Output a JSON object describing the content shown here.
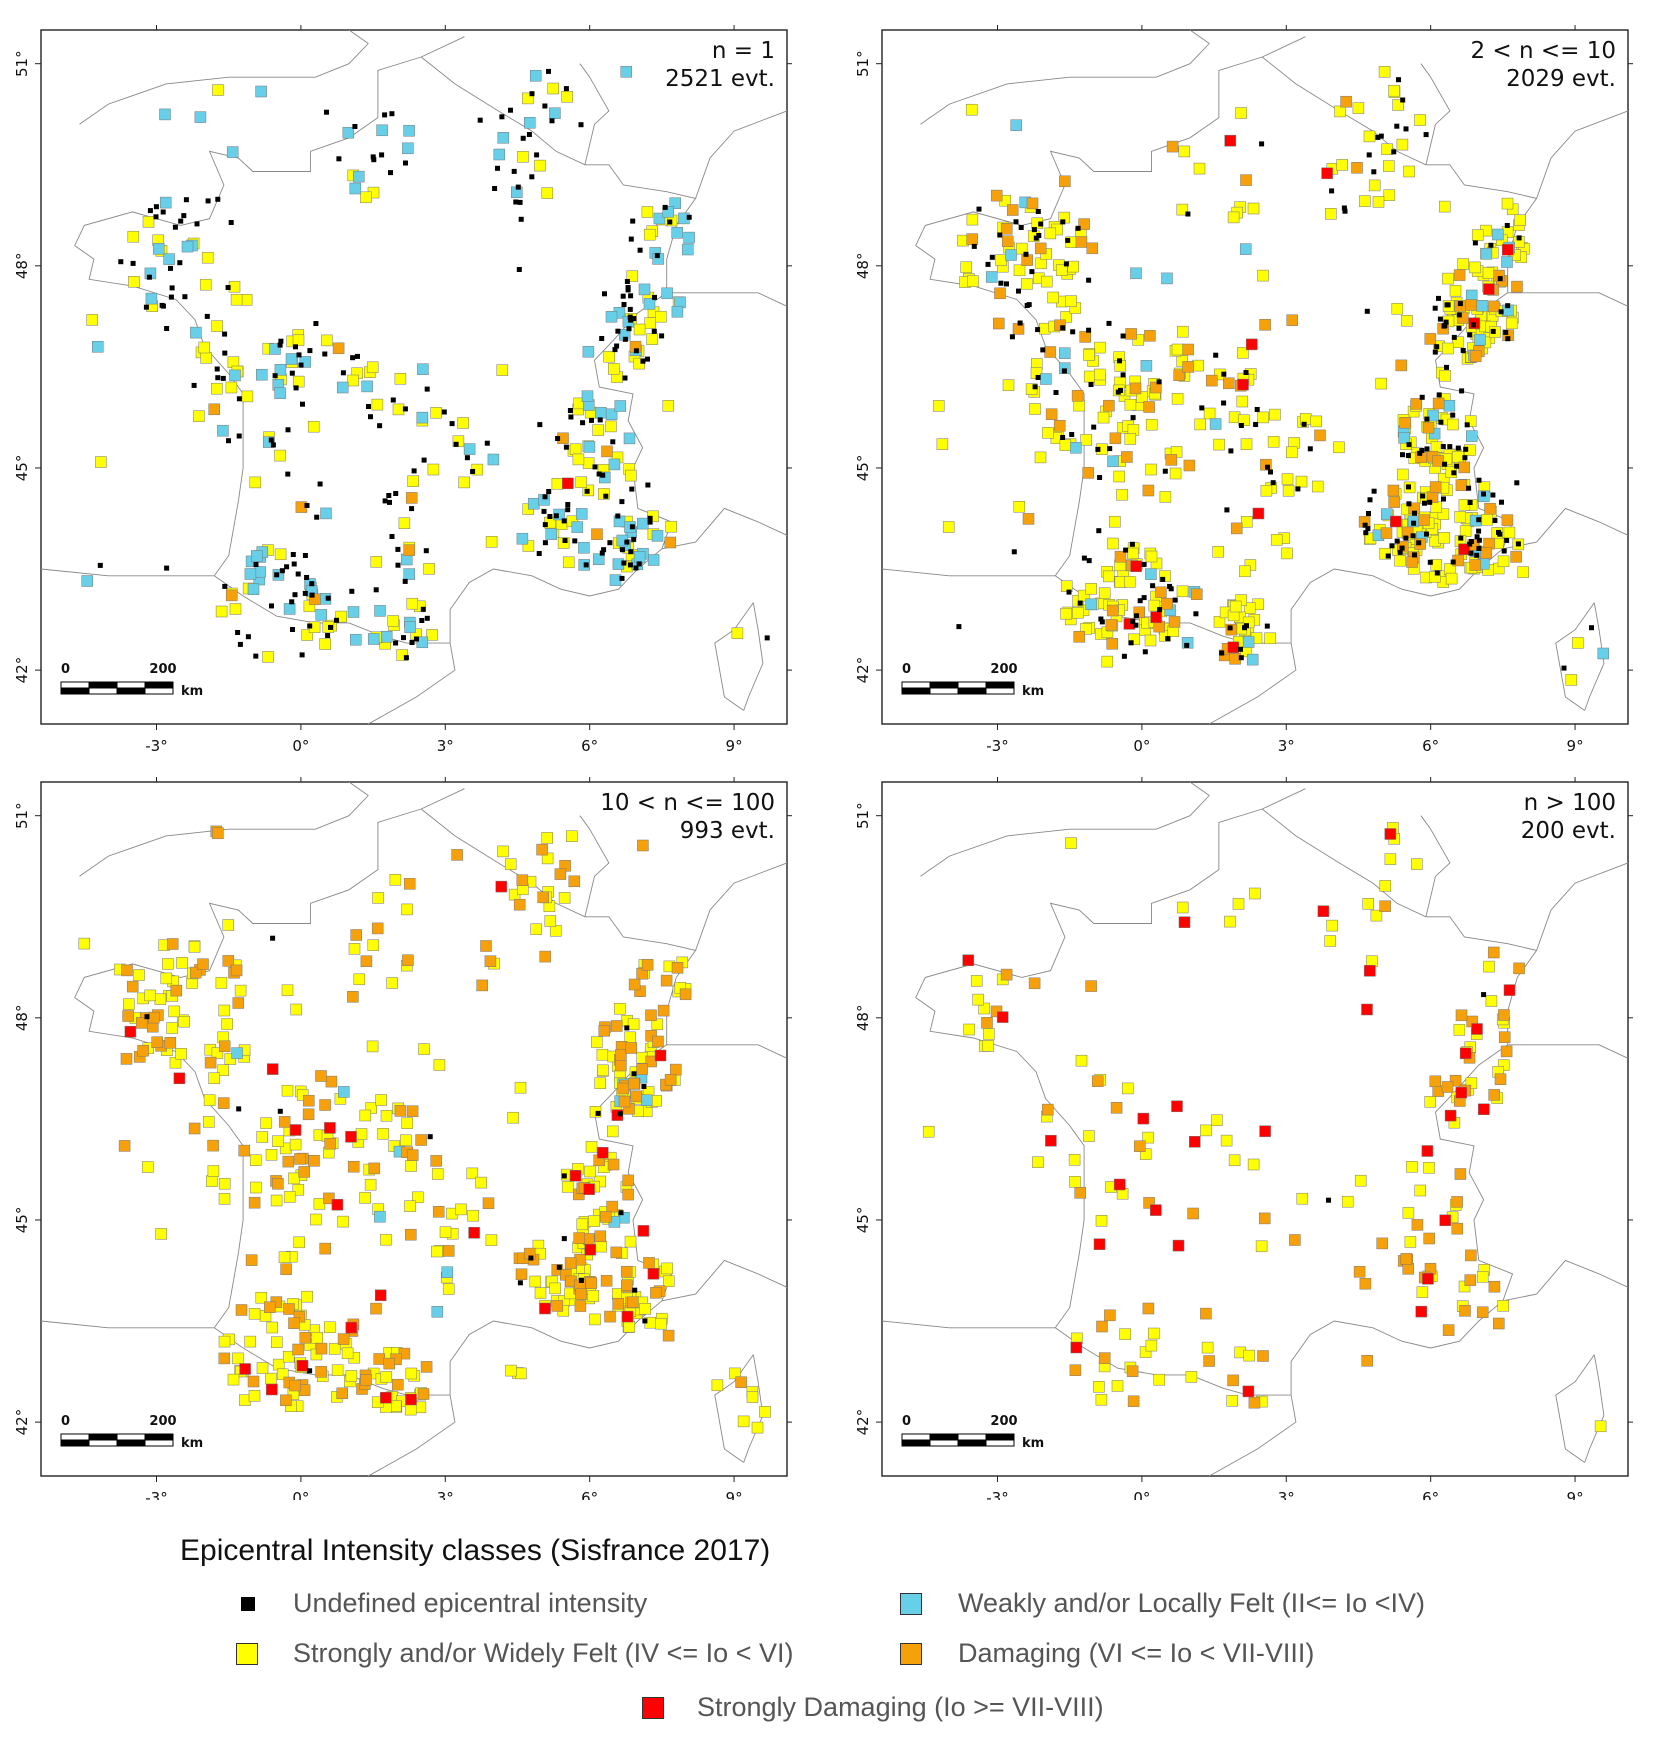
{
  "legend": {
    "title": "Epicentral Intensity classes (Sisfrance 2017)",
    "classes": [
      {
        "key": "undef",
        "label": "Undefined epicentral intensity",
        "color": "#000000"
      },
      {
        "key": "weak",
        "label": "Weakly and/or Locally Felt (II<= Io <IV)",
        "color": "#67cfe8"
      },
      {
        "key": "strong",
        "label": "Strongly and/or Widely Felt (IV <= Io < VI)",
        "color": "#ffff00"
      },
      {
        "key": "dmg",
        "label": "Damaging (VI <= Io < VII-VIII)",
        "color": "#f7a10a"
      },
      {
        "key": "sdmg",
        "label": "Strongly Damaging (Io >= VII-VIII)",
        "color": "#ff0000"
      }
    ]
  },
  "axes": {
    "lon_ticks": [
      -3,
      0,
      3,
      6,
      9
    ],
    "lon_tick_labels": [
      "-3°",
      "0°",
      "3°",
      "6°",
      "9°"
    ],
    "lat_ticks": [
      42,
      45,
      48,
      51
    ],
    "lat_tick_labels": [
      "42°",
      "45°",
      "48°",
      "51°"
    ],
    "lon_range": [
      -5.4,
      10.1
    ],
    "lat_range": [
      41.2,
      51.5
    ]
  },
  "scale_bar": {
    "start": "0",
    "end": "200",
    "unit": "km"
  },
  "panels": [
    {
      "line1": "n = 1",
      "line2": "2521 evt.",
      "counts": {
        "undef": 230,
        "weak": 120,
        "strong": 150,
        "dmg": 12,
        "sdmg": 1
      }
    },
    {
      "line1": "2 < n <= 10",
      "line2": "2029 evt.",
      "counts": {
        "undef": 220,
        "weak": 45,
        "strong": 420,
        "dmg": 110,
        "sdmg": 14
      }
    },
    {
      "line1": "10 < n <= 100",
      "line2": "993 evt.",
      "counts": {
        "undef": 20,
        "weak": 12,
        "strong": 330,
        "dmg": 190,
        "sdmg": 26
      }
    },
    {
      "line1": "n > 100",
      "line2": "200 evt.",
      "counts": {
        "undef": 2,
        "weak": 0,
        "strong": 95,
        "dmg": 65,
        "sdmg": 28
      }
    }
  ]
}
